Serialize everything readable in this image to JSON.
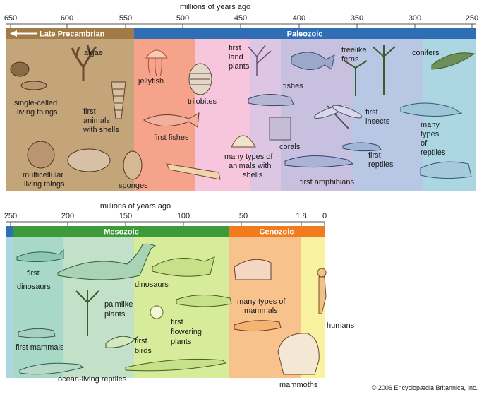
{
  "top_timeline": {
    "axis_title": "millions of years ago",
    "ticks": [
      "650",
      "600",
      "550",
      "500",
      "450",
      "400",
      "350",
      "300",
      "250"
    ],
    "eras": [
      {
        "name": "Late Precambrian",
        "color": "#a27a45"
      },
      {
        "name": "Paleozoic",
        "color": "#2f6eb5"
      }
    ],
    "labels": {
      "algae": "algae",
      "single_celled_1": "single-celled",
      "single_celled_2": "living things",
      "first_animals_1": "first",
      "first_animals_2": "animals",
      "first_animals_3": "with shells",
      "multicellular_1": "multicellular",
      "multicellular_2": "living things",
      "sponges": "sponges",
      "jellyfish": "jellyfish",
      "trilobites": "trilobites",
      "first_fishes": "first fishes",
      "first_land_plants_1": "first",
      "first_land_plants_2": "land",
      "first_land_plants_3": "plants",
      "fishes": "fishes",
      "treelike_ferns_1": "treelike",
      "treelike_ferns_2": "ferns",
      "conifers": "conifers",
      "many_types_1": "many types of",
      "many_types_2": "animals with",
      "many_types_3": "shells",
      "corals": "corals",
      "first_insects_1": "first",
      "first_insects_2": "insects",
      "first_amphibians": "first amphibians",
      "first_reptiles_1": "first",
      "first_reptiles_2": "reptiles",
      "many_reptiles_1": "many",
      "many_reptiles_2": "types",
      "many_reptiles_3": "of",
      "many_reptiles_4": "reptiles"
    }
  },
  "bottom_timeline": {
    "axis_title": "millions of years ago",
    "ticks": [
      "250",
      "200",
      "150",
      "100",
      "50",
      "1.8",
      "0"
    ],
    "eras": [
      {
        "name": "Mesozoic",
        "color": "#3d9a3a"
      },
      {
        "name": "Cenozoic",
        "color": "#f07c1e"
      }
    ],
    "labels": {
      "first_dinosaurs_1": "first",
      "first_dinosaurs_2": "dinosaurs",
      "dinosaurs": "dinosaurs",
      "palmlike_1": "palmlike",
      "palmlike_2": "plants",
      "first_flowering_1": "first",
      "first_flowering_2": "flowering",
      "first_flowering_3": "plants",
      "first_birds_1": "first",
      "first_birds_2": "birds",
      "first_mammals": "first mammals",
      "ocean_reptiles": "ocean-living reptiles",
      "many_mammals_1": "many types of",
      "many_mammals_2": "mammals",
      "humans": "humans",
      "mammoths": "mammoths"
    }
  },
  "copyright": "© 2006 Encyclopædia Britannica, Inc."
}
